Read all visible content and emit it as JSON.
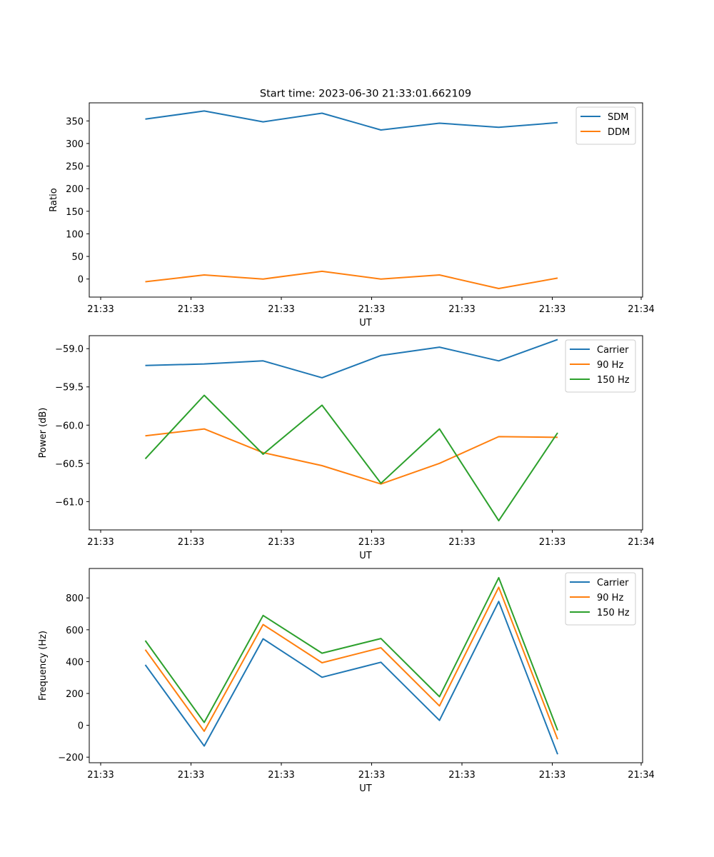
{
  "figure_title": "Start time: 2023-06-30 21:33:01.662109",
  "colors": {
    "blue": "#1f77b4",
    "orange": "#ff7f0e",
    "green": "#2ca02c"
  },
  "chart_data": [
    {
      "type": "line",
      "title": "Start time: 2023-06-30 21:33:01.662109",
      "xlabel": "UT",
      "ylabel": "Ratio",
      "x": [
        1,
        2,
        3,
        4,
        5,
        6,
        7,
        8
      ],
      "x_tick_labels": [
        "21:33",
        "21:33",
        "21:33",
        "21:33",
        "21:33",
        "21:33",
        "21:34"
      ],
      "ylim": [
        -40,
        390
      ],
      "y_ticks": [
        0,
        50,
        100,
        150,
        200,
        250,
        300,
        350
      ],
      "legend_position": "top-right",
      "grid": false,
      "series": [
        {
          "name": "SDM",
          "color": "#1f77b4",
          "values": [
            354,
            372,
            348,
            367,
            330,
            345,
            336,
            346
          ]
        },
        {
          "name": "DDM",
          "color": "#ff7f0e",
          "values": [
            -6,
            9,
            0,
            17,
            0,
            9,
            -21,
            2
          ]
        }
      ]
    },
    {
      "type": "line",
      "xlabel": "UT",
      "ylabel": "Power (dB)",
      "x": [
        1,
        2,
        3,
        4,
        5,
        6,
        7,
        8
      ],
      "x_tick_labels": [
        "21:33",
        "21:33",
        "21:33",
        "21:33",
        "21:33",
        "21:33",
        "21:34"
      ],
      "ylim": [
        -61.37,
        -58.83
      ],
      "y_ticks": [
        -59.0,
        -59.5,
        -60.0,
        -60.5,
        -61.0
      ],
      "y_tick_labels": [
        "−59.0",
        "−59.5",
        "−60.0",
        "−60.5",
        "−61.0"
      ],
      "legend_position": "top-right",
      "grid": false,
      "series": [
        {
          "name": "Carrier",
          "color": "#1f77b4",
          "values": [
            -59.22,
            -59.2,
            -59.16,
            -59.38,
            -59.09,
            -58.98,
            -59.16,
            -58.88
          ]
        },
        {
          "name": "90 Hz",
          "color": "#ff7f0e",
          "values": [
            -60.14,
            -60.05,
            -60.36,
            -60.53,
            -60.77,
            -60.5,
            -60.15,
            -60.16
          ]
        },
        {
          "name": "150 Hz",
          "color": "#2ca02c",
          "values": [
            -60.44,
            -59.61,
            -60.38,
            -59.74,
            -60.76,
            -60.05,
            -61.25,
            -60.1
          ]
        }
      ]
    },
    {
      "type": "line",
      "xlabel": "UT",
      "ylabel": "Frequency (Hz)",
      "x": [
        1,
        2,
        3,
        4,
        5,
        6,
        7,
        8
      ],
      "x_tick_labels": [
        "21:33",
        "21:33",
        "21:33",
        "21:33",
        "21:33",
        "21:33",
        "21:34"
      ],
      "ylim": [
        -235,
        985
      ],
      "y_ticks": [
        -200,
        0,
        200,
        400,
        600,
        800
      ],
      "y_tick_labels": [
        "−200",
        "0",
        "200",
        "400",
        "600",
        "800"
      ],
      "legend_position": "top-right",
      "grid": false,
      "series": [
        {
          "name": "Carrier",
          "color": "#1f77b4",
          "values": [
            380,
            -130,
            543,
            302,
            396,
            31,
            778,
            -182
          ]
        },
        {
          "name": "90 Hz",
          "color": "#ff7f0e",
          "values": [
            475,
            -37,
            633,
            393,
            487,
            122,
            867,
            -88
          ]
        },
        {
          "name": "150 Hz",
          "color": "#2ca02c",
          "values": [
            532,
            18,
            690,
            453,
            545,
            180,
            927,
            -32
          ]
        }
      ]
    }
  ]
}
